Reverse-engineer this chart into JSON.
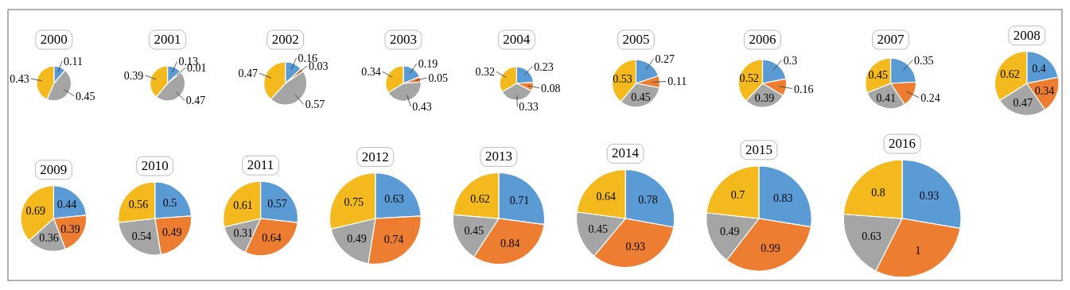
{
  "chart_data": [
    {
      "type": "pie",
      "title": "2000",
      "categories": [
        null,
        null,
        null
      ],
      "values": [
        0.11,
        0.45,
        0.43
      ],
      "colors": [
        "#5b9bd5",
        "#a5a5a5",
        "#f4b91d"
      ],
      "data_labels": true
    },
    {
      "type": "pie",
      "title": "2001",
      "categories": [
        null,
        null,
        null,
        null
      ],
      "values": [
        0.13,
        0.01,
        0.47,
        0.39
      ],
      "colors": [
        "#5b9bd5",
        "#ed7d31",
        "#a5a5a5",
        "#f4b91d"
      ],
      "data_labels": true
    },
    {
      "type": "pie",
      "title": "2002",
      "categories": [
        null,
        null,
        null,
        null
      ],
      "values": [
        0.16,
        0.03,
        0.57,
        0.47
      ],
      "colors": [
        "#5b9bd5",
        "#ed7d31",
        "#a5a5a5",
        "#f4b91d"
      ],
      "data_labels": true
    },
    {
      "type": "pie",
      "title": "2003",
      "categories": [
        null,
        null,
        null,
        null
      ],
      "values": [
        0.19,
        0.05,
        0.43,
        0.34
      ],
      "colors": [
        "#5b9bd5",
        "#ed7d31",
        "#a5a5a5",
        "#f4b91d"
      ],
      "data_labels": true
    },
    {
      "type": "pie",
      "title": "2004",
      "categories": [
        null,
        null,
        null,
        null
      ],
      "values": [
        0.23,
        0.08,
        0.33,
        0.32
      ],
      "colors": [
        "#5b9bd5",
        "#ed7d31",
        "#a5a5a5",
        "#f4b91d"
      ],
      "data_labels": true
    },
    {
      "type": "pie",
      "title": "2005",
      "categories": [
        null,
        null,
        null,
        null
      ],
      "values": [
        0.27,
        0.11,
        0.45,
        0.53
      ],
      "colors": [
        "#5b9bd5",
        "#ed7d31",
        "#a5a5a5",
        "#f4b91d"
      ],
      "data_labels": true
    },
    {
      "type": "pie",
      "title": "2006",
      "categories": [
        null,
        null,
        null,
        null
      ],
      "values": [
        0.3,
        0.16,
        0.39,
        0.52
      ],
      "colors": [
        "#5b9bd5",
        "#ed7d31",
        "#a5a5a5",
        "#f4b91d"
      ],
      "data_labels": true
    },
    {
      "type": "pie",
      "title": "2007",
      "categories": [
        null,
        null,
        null,
        null
      ],
      "values": [
        0.35,
        0.24,
        0.41,
        0.45
      ],
      "colors": [
        "#5b9bd5",
        "#ed7d31",
        "#a5a5a5",
        "#f4b91d"
      ],
      "data_labels": true
    },
    {
      "type": "pie",
      "title": "2008",
      "categories": [
        null,
        null,
        null,
        null
      ],
      "values": [
        0.4,
        0.34,
        0.47,
        0.62
      ],
      "colors": [
        "#5b9bd5",
        "#ed7d31",
        "#a5a5a5",
        "#f4b91d"
      ],
      "data_labels": true
    },
    {
      "type": "pie",
      "title": "2009",
      "categories": [
        null,
        null,
        null,
        null
      ],
      "values": [
        0.44,
        0.39,
        0.36,
        0.69
      ],
      "colors": [
        "#5b9bd5",
        "#ed7d31",
        "#a5a5a5",
        "#f4b91d"
      ],
      "data_labels": true
    },
    {
      "type": "pie",
      "title": "2010",
      "categories": [
        null,
        null,
        null,
        null
      ],
      "values": [
        0.5,
        0.49,
        0.54,
        0.56
      ],
      "colors": [
        "#5b9bd5",
        "#ed7d31",
        "#a5a5a5",
        "#f4b91d"
      ],
      "data_labels": true
    },
    {
      "type": "pie",
      "title": "2011",
      "categories": [
        null,
        null,
        null,
        null
      ],
      "values": [
        0.57,
        0.64,
        0.31,
        0.61
      ],
      "colors": [
        "#5b9bd5",
        "#ed7d31",
        "#a5a5a5",
        "#f4b91d"
      ],
      "data_labels": true
    },
    {
      "type": "pie",
      "title": "2012",
      "categories": [
        null,
        null,
        null,
        null
      ],
      "values": [
        0.63,
        0.74,
        0.49,
        0.75
      ],
      "colors": [
        "#5b9bd5",
        "#ed7d31",
        "#a5a5a5",
        "#f4b91d"
      ],
      "data_labels": true
    },
    {
      "type": "pie",
      "title": "2013",
      "categories": [
        null,
        null,
        null,
        null
      ],
      "values": [
        0.71,
        0.84,
        0.45,
        0.62
      ],
      "colors": [
        "#5b9bd5",
        "#ed7d31",
        "#a5a5a5",
        "#f4b91d"
      ],
      "data_labels": true
    },
    {
      "type": "pie",
      "title": "2014",
      "categories": [
        null,
        null,
        null,
        null
      ],
      "values": [
        0.78,
        0.93,
        0.45,
        0.64
      ],
      "colors": [
        "#5b9bd5",
        "#ed7d31",
        "#a5a5a5",
        "#f4b91d"
      ],
      "data_labels": true
    },
    {
      "type": "pie",
      "title": "2015",
      "categories": [
        null,
        null,
        null,
        null
      ],
      "values": [
        0.83,
        0.99,
        0.49,
        0.7
      ],
      "colors": [
        "#5b9bd5",
        "#ed7d31",
        "#a5a5a5",
        "#f4b91d"
      ],
      "data_labels": true
    },
    {
      "type": "pie",
      "title": "2016",
      "categories": [
        null,
        null,
        null,
        null
      ],
      "values": [
        0.93,
        1,
        0.63,
        0.8
      ],
      "colors": [
        "#5b9bd5",
        "#ed7d31",
        "#a5a5a5",
        "#f4b91d"
      ],
      "data_labels": true
    }
  ]
}
